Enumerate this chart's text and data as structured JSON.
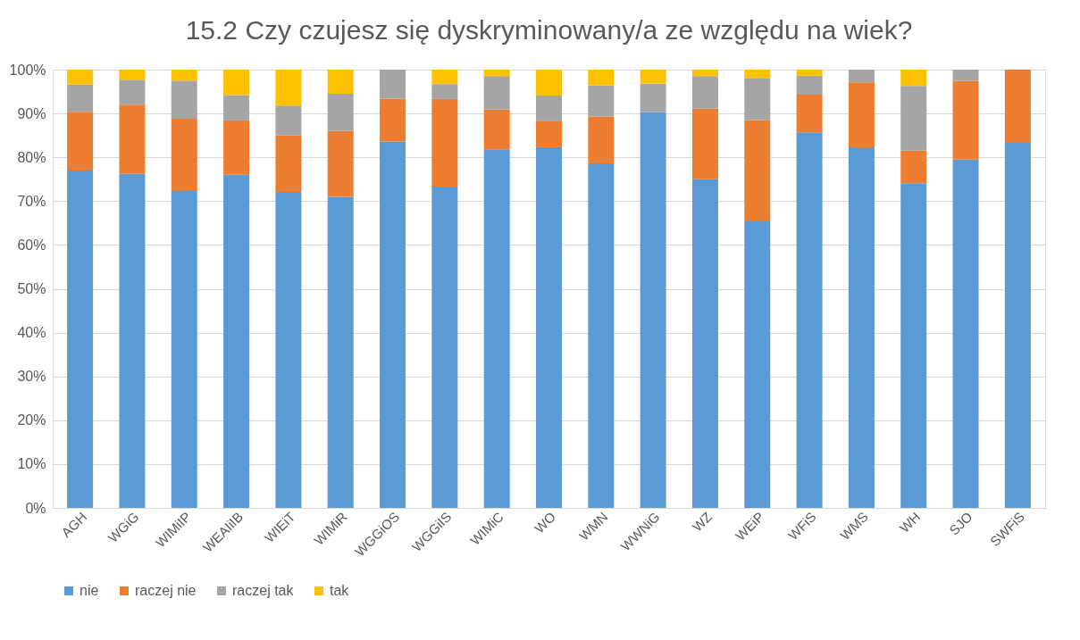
{
  "chart_data": {
    "type": "bar",
    "stacked": true,
    "title": "15.2 Czy czujesz się dyskryminowany/a ze względu na wiek?",
    "categories": [
      "AGH",
      "WGiG",
      "WIMiIP",
      "WEAIiIB",
      "WIEiT",
      "WIMiR",
      "WGGiOS",
      "WGGiIS",
      "WIMiC",
      "WO",
      "WMN",
      "WWNiG",
      "WZ",
      "WEiP",
      "WFiS",
      "WMS",
      "WH",
      "SJO",
      "SWFiS"
    ],
    "series": [
      {
        "name": "nie",
        "color": "#5b9bd5",
        "values": [
          77,
          76.2,
          72.5,
          76,
          72.1,
          71,
          83.6,
          73.3,
          81.8,
          82.3,
          78.6,
          90.3,
          75,
          65.4,
          85.7,
          82.3,
          74.1,
          79.5,
          83.3
        ]
      },
      {
        "name": "raczej nie",
        "color": "#ed7d31",
        "values": [
          13.4,
          15.8,
          16.3,
          12.4,
          12.9,
          15,
          9.8,
          20,
          9.1,
          5.9,
          10.7,
          0,
          16.1,
          23.1,
          8.6,
          14.8,
          7.4,
          17.9,
          16.7
        ]
      },
      {
        "name": "raczej tak",
        "color": "#a5a5a5",
        "values": [
          6.2,
          5.7,
          8.7,
          5.8,
          6.8,
          8.5,
          6.6,
          3.4,
          7.6,
          5.9,
          7.1,
          6.5,
          7.4,
          9.6,
          4.3,
          2.9,
          14.8,
          2.6,
          0
        ]
      },
      {
        "name": "tak",
        "color": "#ffc000",
        "values": [
          3.4,
          2.3,
          2.5,
          5.8,
          8.2,
          5.5,
          0,
          3.3,
          1.5,
          5.9,
          3.6,
          3.2,
          1.5,
          1.9,
          1.4,
          0,
          3.7,
          0,
          0
        ]
      }
    ],
    "ylim": [
      0,
      100
    ],
    "yticks": [
      {
        "value": 0,
        "label": "0%"
      },
      {
        "value": 10,
        "label": "10%"
      },
      {
        "value": 20,
        "label": "20%"
      },
      {
        "value": 30,
        "label": "30%"
      },
      {
        "value": 40,
        "label": "40%"
      },
      {
        "value": 50,
        "label": "50%"
      },
      {
        "value": 60,
        "label": "60%"
      },
      {
        "value": 70,
        "label": "70%"
      },
      {
        "value": 80,
        "label": "80%"
      },
      {
        "value": 90,
        "label": "90%"
      },
      {
        "value": 100,
        "label": "100%"
      }
    ],
    "grid": "y",
    "legend": "bottom"
  }
}
